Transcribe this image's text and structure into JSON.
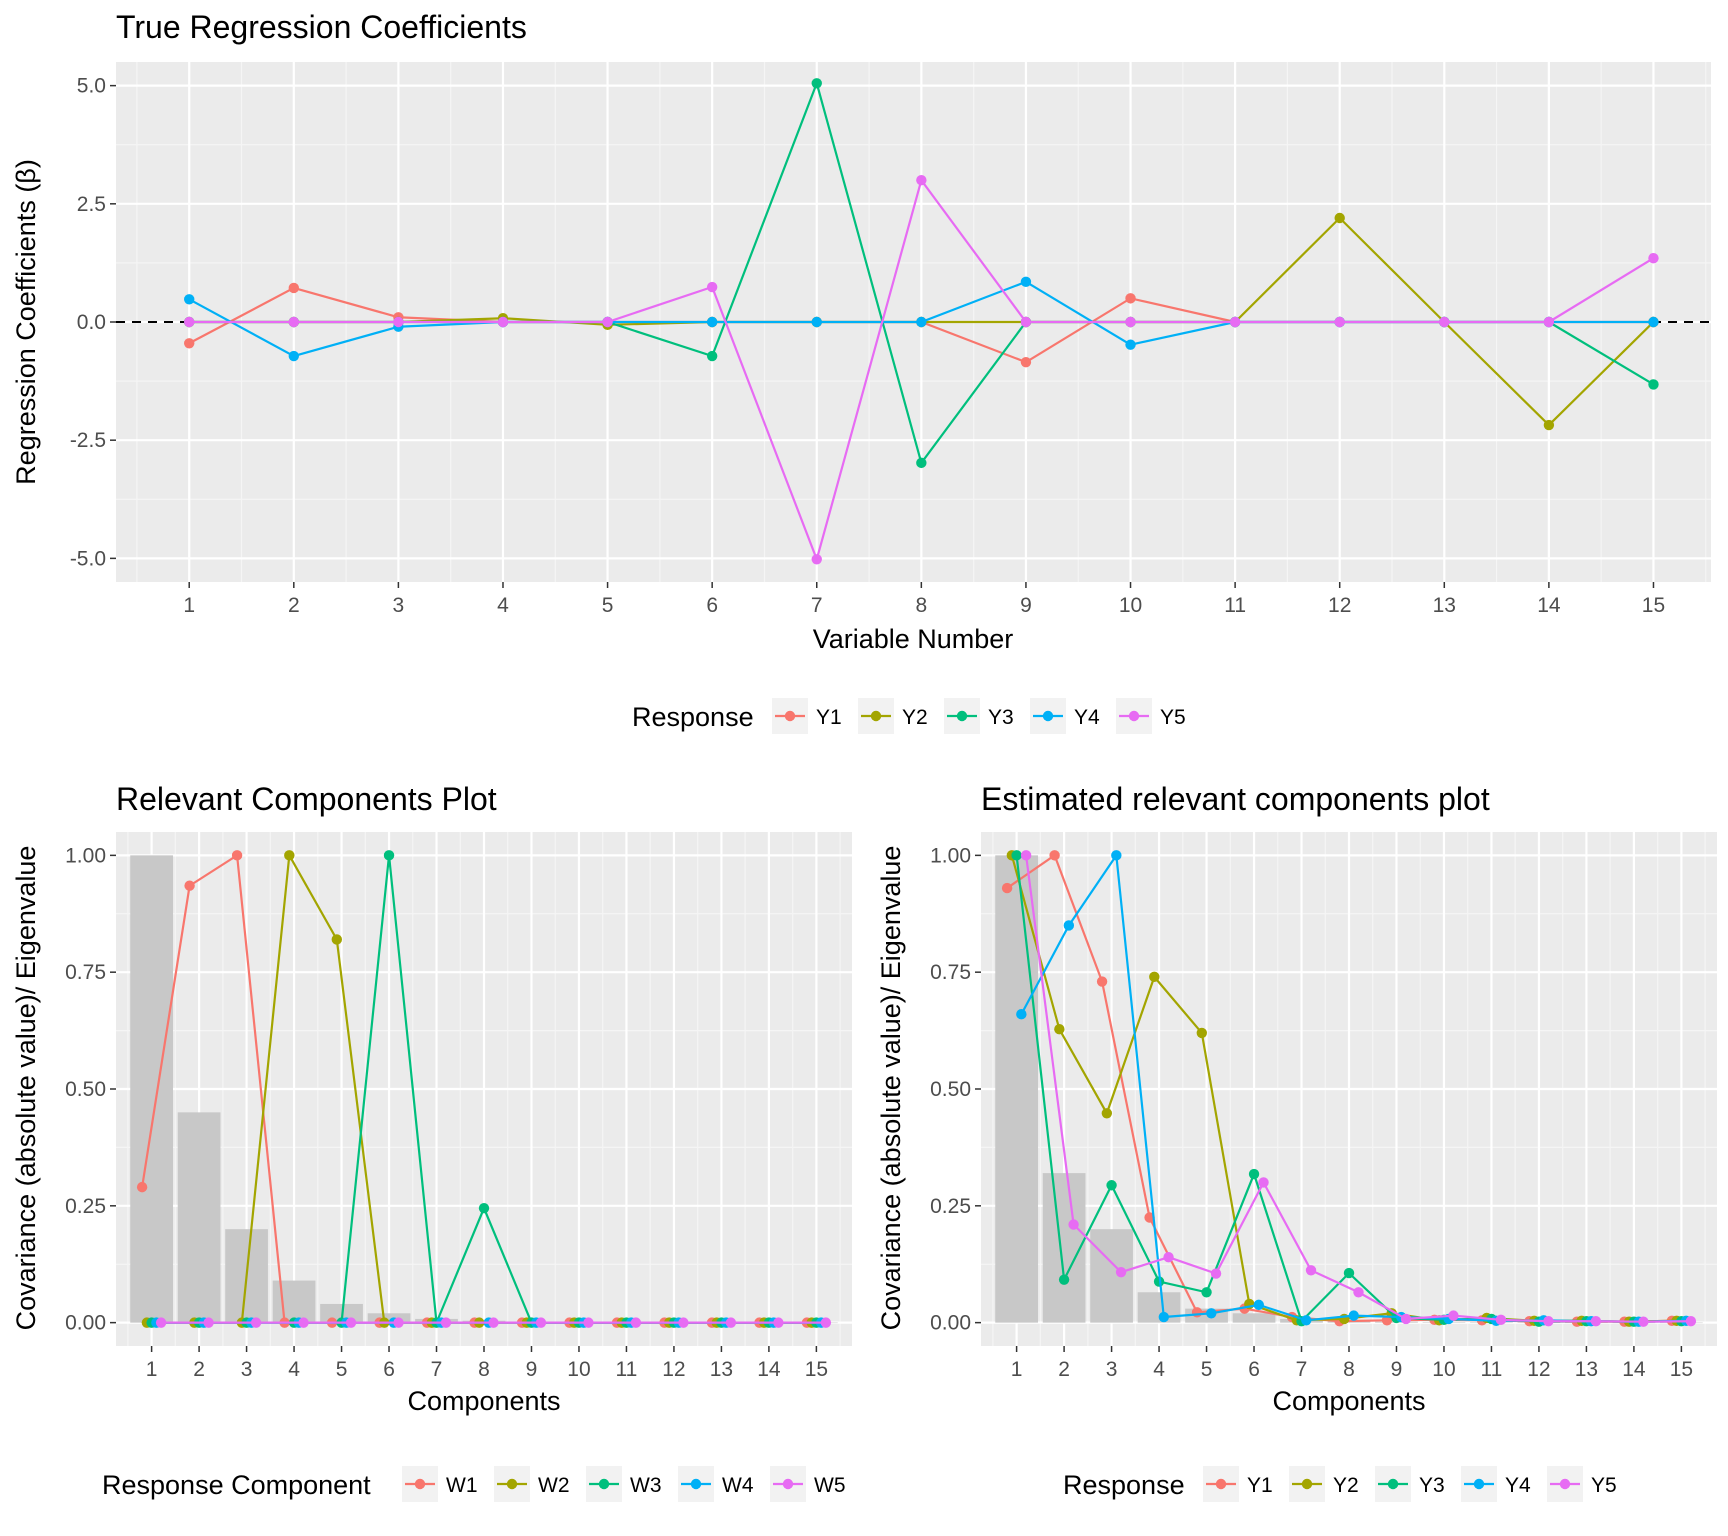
{
  "chart_data": [
    {
      "type": "line",
      "title": "True Regression Coefficients",
      "xlabel": "Variable Number",
      "ylabel": "Regression Coefficients (β)",
      "x": [
        1,
        2,
        3,
        4,
        5,
        6,
        7,
        8,
        9,
        10,
        11,
        12,
        13,
        14,
        15
      ],
      "xlim": [
        0.3,
        15.55
      ],
      "ylim": [
        -5.5,
        5.5
      ],
      "yticks": [
        "-5.0",
        "-2.5",
        "0.0",
        "2.5",
        "5.0"
      ],
      "ytick_values": [
        -5,
        -2.5,
        0,
        2.5,
        5
      ],
      "reference_line": 0,
      "grid": true,
      "legend_title": "Response",
      "legend_position": "bottom",
      "series": [
        {
          "name": "Y1",
          "color": "#F8766D",
          "values": [
            -0.45,
            0.72,
            0.1,
            0.0,
            0.0,
            0.0,
            0.0,
            0.0,
            -0.85,
            0.5,
            0.0,
            0.0,
            0.0,
            0.0,
            0.0
          ]
        },
        {
          "name": "Y2",
          "color": "#A3A500",
          "values": [
            0.0,
            0.0,
            0.0,
            0.08,
            -0.06,
            0.0,
            0.0,
            0.0,
            0.0,
            0.0,
            0.0,
            2.2,
            0.0,
            -2.18,
            0.0
          ]
        },
        {
          "name": "Y3",
          "color": "#00BF7D",
          "values": [
            0.0,
            0.0,
            0.0,
            0.0,
            0.0,
            -0.72,
            5.05,
            -2.98,
            0.0,
            0.0,
            0.0,
            0.0,
            0.0,
            0.0,
            -1.32
          ]
        },
        {
          "name": "Y4",
          "color": "#00B0F6",
          "values": [
            0.48,
            -0.72,
            -0.1,
            0.0,
            0.0,
            0.0,
            0.0,
            0.0,
            0.85,
            -0.48,
            0.0,
            0.0,
            0.0,
            0.0,
            0.0
          ]
        },
        {
          "name": "Y5",
          "color": "#E76BF3",
          "values": [
            0.0,
            0.0,
            0.0,
            0.0,
            0.0,
            0.74,
            -5.02,
            3.0,
            0.0,
            0.0,
            0.0,
            0.0,
            0.0,
            0.0,
            1.35
          ]
        }
      ]
    },
    {
      "type": "line",
      "title": "Relevant Components Plot",
      "xlabel": "Components",
      "ylabel": "Covariance (absolute value)/ Eigenvalue",
      "x": [
        1,
        2,
        3,
        4,
        5,
        6,
        7,
        8,
        9,
        10,
        11,
        12,
        13,
        14,
        15
      ],
      "xlim": [
        0.25,
        15.75
      ],
      "ylim": [
        -0.05,
        1.05
      ],
      "yticks": [
        "0.00",
        "0.25",
        "0.50",
        "0.75",
        "1.00"
      ],
      "ytick_values": [
        0,
        0.25,
        0.5,
        0.75,
        1
      ],
      "grid": true,
      "legend_title": "Response Component",
      "legend_position": "bottom",
      "bars": {
        "name": "Eigenvalue",
        "color": "#C8C8C8",
        "values": [
          1.0,
          0.45,
          0.2,
          0.09,
          0.04,
          0.02,
          0.008,
          0.004,
          0.002,
          0.001,
          0.0005,
          0.0003,
          0.0002,
          0.0001,
          0.0001
        ]
      },
      "dodge": 0.1,
      "series": [
        {
          "name": "W1",
          "color": "#F8766D",
          "values": [
            0.29,
            0.935,
            1.0,
            0.0,
            0.0,
            0.0,
            0.0,
            0.0,
            0.0,
            0.0,
            0.0,
            0.0,
            0.0,
            0.0,
            0.0
          ]
        },
        {
          "name": "W2",
          "color": "#A3A500",
          "values": [
            0.0,
            0.0,
            0.0,
            1.0,
            0.82,
            0.0,
            0.0,
            0.0,
            0.0,
            0.0,
            0.0,
            0.0,
            0.0,
            0.0,
            0.0
          ]
        },
        {
          "name": "W3",
          "color": "#00BF7D",
          "values": [
            0.0,
            0.0,
            0.0,
            0.0,
            0.0,
            1.0,
            0.0,
            0.245,
            0.0,
            0.0,
            0.0,
            0.0,
            0.0,
            0.0,
            0.0
          ]
        },
        {
          "name": "W4",
          "color": "#00B0F6",
          "values": [
            0.0,
            0.0,
            0.0,
            0.0,
            0.0,
            0.0,
            0.0,
            0.0,
            0.0,
            0.0,
            0.0,
            0.0,
            0.0,
            0.0,
            0.0
          ]
        },
        {
          "name": "W5",
          "color": "#E76BF3",
          "values": [
            0.0,
            0.0,
            0.0,
            0.0,
            0.0,
            0.0,
            0.0,
            0.0,
            0.0,
            0.0,
            0.0,
            0.0,
            0.0,
            0.0,
            0.0
          ]
        }
      ]
    },
    {
      "type": "line",
      "title": "Estimated relevant components plot",
      "xlabel": "Components",
      "ylabel": "Covariance (absolute value)/ Eigenvalue",
      "x": [
        1,
        2,
        3,
        4,
        5,
        6,
        7,
        8,
        9,
        10,
        11,
        12,
        13,
        14,
        15
      ],
      "xlim": [
        0.25,
        15.75
      ],
      "ylim": [
        -0.05,
        1.05
      ],
      "yticks": [
        "0.00",
        "0.25",
        "0.50",
        "0.75",
        "1.00"
      ],
      "ytick_values": [
        0,
        0.25,
        0.5,
        0.75,
        1
      ],
      "grid": true,
      "legend_title": "Response",
      "legend_position": "bottom",
      "bars": {
        "name": "Eigenvalue",
        "color": "#C8C8C8",
        "values": [
          1.0,
          0.32,
          0.2,
          0.065,
          0.03,
          0.02,
          0.008,
          0.004,
          0.002,
          0.001,
          0.0005,
          0.0003,
          0.0002,
          0.0001,
          0.0001
        ]
      },
      "dodge": 0.1,
      "series": [
        {
          "name": "Y1",
          "color": "#F8766D",
          "values": [
            0.93,
            1.0,
            0.73,
            0.225,
            0.022,
            0.03,
            0.012,
            0.003,
            0.005,
            0.006,
            0.005,
            0.003,
            0.002,
            0.002,
            0.004
          ]
        },
        {
          "name": "Y2",
          "color": "#A3A500",
          "values": [
            1.0,
            0.628,
            0.448,
            0.74,
            0.62,
            0.04,
            0.005,
            0.008,
            0.02,
            0.005,
            0.01,
            0.004,
            0.004,
            0.002,
            0.004
          ]
        },
        {
          "name": "Y3",
          "color": "#00BF7D",
          "values": [
            1.0,
            0.092,
            0.294,
            0.088,
            0.065,
            0.318,
            0.003,
            0.106,
            0.01,
            0.006,
            0.008,
            0.002,
            0.003,
            0.002,
            0.003
          ]
        },
        {
          "name": "Y4",
          "color": "#00B0F6",
          "values": [
            0.66,
            0.85,
            1.0,
            0.012,
            0.02,
            0.038,
            0.005,
            0.015,
            0.012,
            0.008,
            0.004,
            0.005,
            0.003,
            0.002,
            0.004
          ]
        },
        {
          "name": "Y5",
          "color": "#E76BF3",
          "values": [
            1.0,
            0.21,
            0.108,
            0.14,
            0.105,
            0.3,
            0.112,
            0.065,
            0.008,
            0.015,
            0.006,
            0.003,
            0.003,
            0.002,
            0.003
          ]
        }
      ]
    }
  ]
}
